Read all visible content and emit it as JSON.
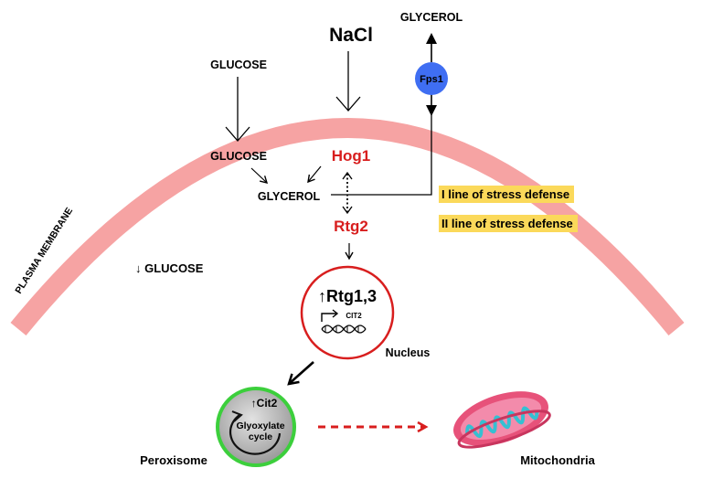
{
  "membrane": {
    "label": "PLASMA MEMBRANE",
    "color": "#f6a3a3"
  },
  "inputs": {
    "nacl": "NaCl",
    "glucose_outside": "GLUCOSE"
  },
  "channel": {
    "name": "Fps1",
    "glycerol_out": "GLYCEROL",
    "color": "#3f6ef2"
  },
  "cytoplasm": {
    "glucose_inside": "GLUCOSE",
    "glycerol": "GLYCEROL",
    "hog1": "Hog1",
    "rtg2": "Rtg2",
    "low_glucose": "↓ GLUCOSE"
  },
  "defense_lines": [
    "I line of stress defense",
    "II line of stress defense"
  ],
  "nucleus": {
    "rtg": "↑Rtg1,3",
    "gene": "CIT2",
    "label": "Nucleus"
  },
  "peroxisome": {
    "enzyme": "↑Cit2",
    "cycle_line1": "Glyoxylate",
    "cycle_line2": "cycle",
    "label": "Peroxisome"
  },
  "mitochondria": {
    "label": "Mitochondria"
  },
  "colors": {
    "accent_red": "#d81e1e",
    "highlight": "#fbd95a",
    "peroxisome_ring": "#3ccf3c"
  }
}
